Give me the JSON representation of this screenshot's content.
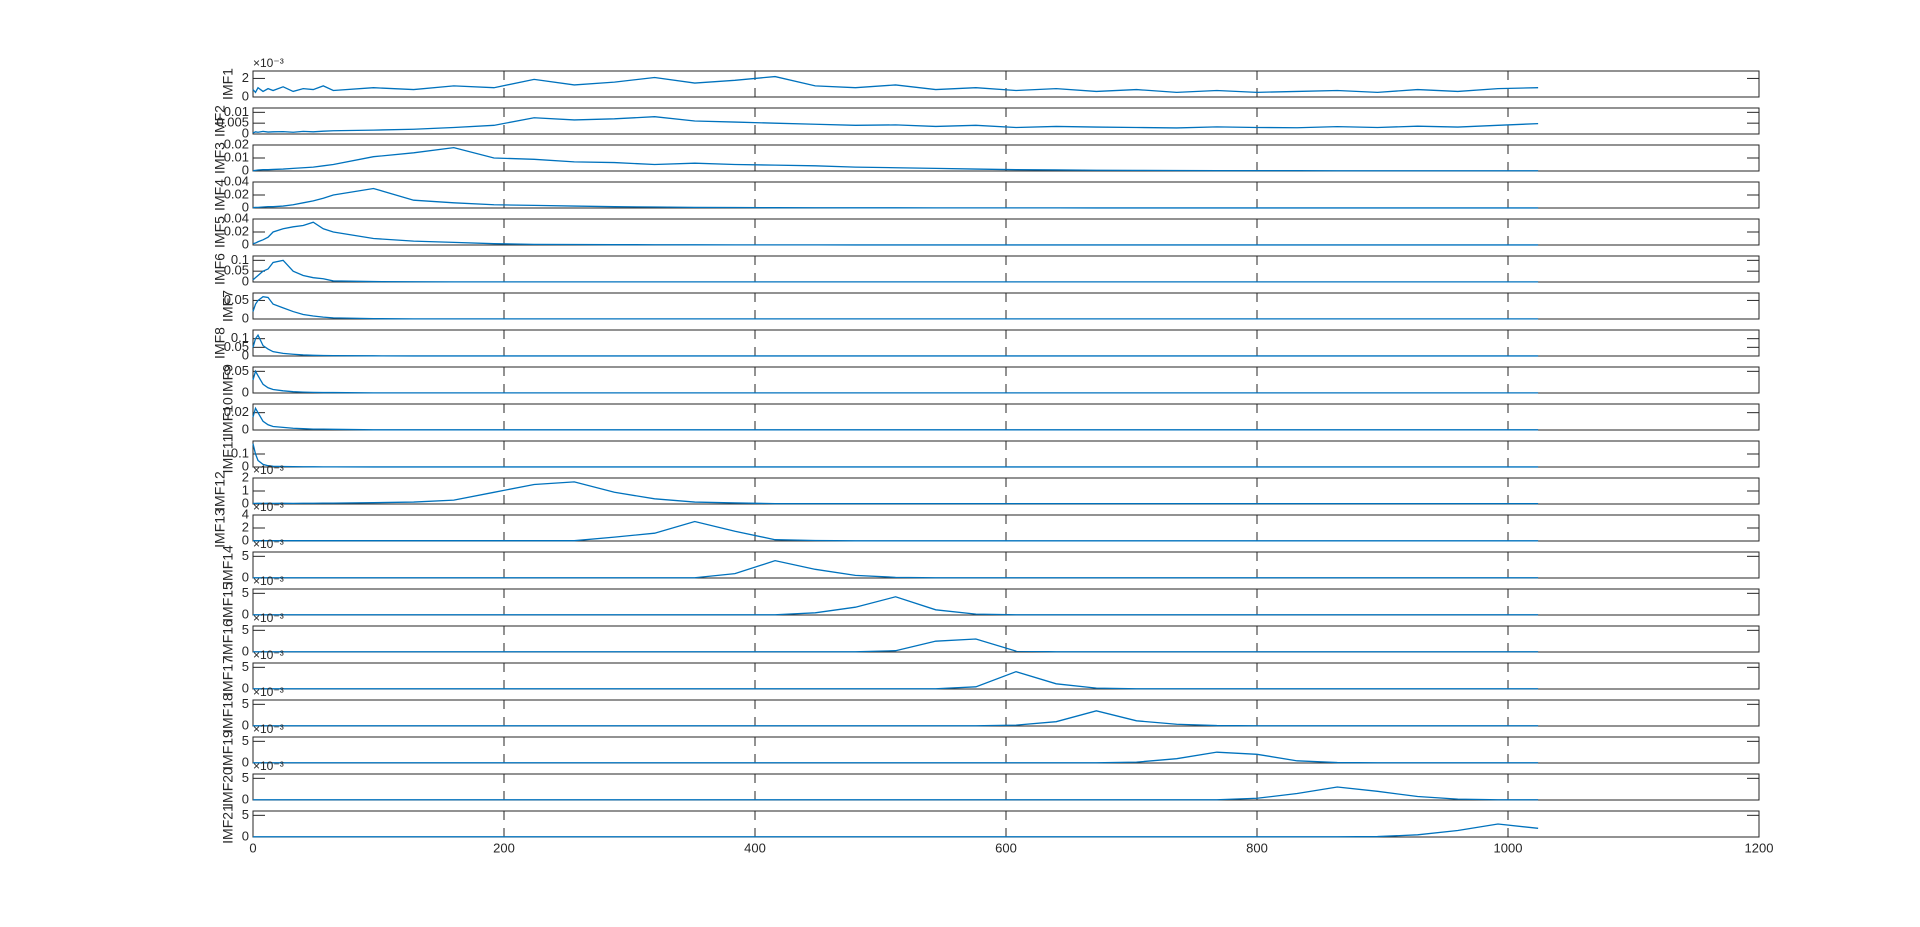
{
  "chart_data": {
    "type": "line",
    "color": "#0072bd",
    "x": [
      0,
      2,
      4,
      8,
      12,
      16,
      24,
      32,
      40,
      48,
      56,
      64,
      96,
      128,
      160,
      192,
      224,
      256,
      288,
      320,
      352,
      384,
      416,
      448,
      480,
      512,
      544,
      576,
      608,
      640,
      672,
      704,
      736,
      768,
      800,
      832,
      864,
      896,
      928,
      960,
      992,
      1024
    ],
    "xlim": [
      0,
      1200
    ],
    "xticks": [
      0,
      200,
      400,
      600,
      800,
      1000,
      1200
    ],
    "panels": [
      {
        "ylabel": "IMF1",
        "exponent_label": "×10⁻³",
        "ylim": [
          0,
          2.8
        ],
        "yticks": [
          0,
          2
        ],
        "values": [
          0.8,
          0.5,
          1.0,
          0.6,
          0.9,
          0.7,
          1.1,
          0.6,
          0.9,
          0.8,
          1.2,
          0.7,
          1.0,
          0.8,
          1.2,
          1.0,
          1.9,
          1.3,
          1.6,
          2.1,
          1.5,
          1.8,
          2.2,
          1.2,
          1.0,
          1.3,
          0.8,
          1.0,
          0.7,
          0.9,
          0.6,
          0.8,
          0.5,
          0.7,
          0.5,
          0.6,
          0.7,
          0.5,
          0.8,
          0.6,
          0.9,
          1.0
        ]
      },
      {
        "ylabel": "IMF2",
        "ylim": [
          0,
          0.012
        ],
        "yticks": [
          0,
          0.005,
          0.01
        ],
        "values": [
          0.0005,
          0.001,
          0.0008,
          0.0012,
          0.0009,
          0.001,
          0.0011,
          0.0008,
          0.0012,
          0.001,
          0.0013,
          0.0015,
          0.0018,
          0.0022,
          0.003,
          0.004,
          0.0075,
          0.0065,
          0.007,
          0.008,
          0.006,
          0.0055,
          0.005,
          0.0045,
          0.004,
          0.0042,
          0.0035,
          0.004,
          0.003,
          0.0035,
          0.0032,
          0.003,
          0.0028,
          0.0033,
          0.003,
          0.0029,
          0.0034,
          0.003,
          0.0036,
          0.0032,
          0.004,
          0.0048
        ]
      },
      {
        "ylabel": "IMF3",
        "ylim": [
          0,
          0.02
        ],
        "yticks": [
          0,
          0.01,
          0.02
        ],
        "values": [
          0.0002,
          0.0005,
          0.0008,
          0.001,
          0.001,
          0.0012,
          0.0015,
          0.002,
          0.0025,
          0.003,
          0.004,
          0.005,
          0.011,
          0.014,
          0.018,
          0.01,
          0.009,
          0.007,
          0.0065,
          0.005,
          0.006,
          0.005,
          0.0045,
          0.004,
          0.003,
          0.0025,
          0.002,
          0.0015,
          0.001,
          0.0008,
          0.0006,
          0.0005,
          0.0004,
          0.0003,
          0.0003,
          0.0003,
          0.0002,
          0.0002,
          0.0002,
          0.0002,
          0.0002,
          0.0002
        ]
      },
      {
        "ylabel": "IMF4",
        "ylim": [
          0,
          0.04
        ],
        "yticks": [
          0,
          0.02,
          0.04
        ],
        "values": [
          0.0005,
          0.001,
          0.001,
          0.0015,
          0.002,
          0.002,
          0.003,
          0.005,
          0.008,
          0.011,
          0.015,
          0.02,
          0.03,
          0.012,
          0.008,
          0.005,
          0.004,
          0.003,
          0.002,
          0.0015,
          0.001,
          0.0008,
          0.0005,
          0.0004,
          0.0003,
          0.0003,
          0.0002,
          0.0002,
          0.0002,
          0.0002,
          0.0001,
          0.0001,
          0.0001,
          0.0001,
          0.0001,
          0.0001,
          0.0001,
          0.0001,
          0.0001,
          0.0001,
          0.0001,
          0.0001
        ]
      },
      {
        "ylabel": "IMF5",
        "ylim": [
          0,
          0.04
        ],
        "yticks": [
          0,
          0.02,
          0.04
        ],
        "values": [
          0.002,
          0.003,
          0.005,
          0.008,
          0.012,
          0.02,
          0.025,
          0.028,
          0.03,
          0.035,
          0.025,
          0.02,
          0.01,
          0.006,
          0.004,
          0.002,
          0.001,
          0.0008,
          0.0005,
          0.0004,
          0.0003,
          0.0002,
          0.0002,
          0.0002,
          0.0001,
          0.0001,
          0.0001,
          0.0001,
          0.0001,
          0.0001,
          0.0001,
          0.0001,
          0.0001,
          0.0001,
          0.0001,
          0.0001,
          0.0001,
          0.0001,
          0.0001,
          0.0001,
          0.0001,
          0.0001
        ]
      },
      {
        "ylabel": "IMF6",
        "ylim": [
          0,
          0.12
        ],
        "yticks": [
          0,
          0.05,
          0.1
        ],
        "values": [
          0.01,
          0.02,
          0.03,
          0.05,
          0.06,
          0.09,
          0.1,
          0.05,
          0.03,
          0.02,
          0.015,
          0.005,
          0.002,
          0.001,
          0.0005,
          0.0005,
          0.0005,
          0.0005,
          0.0005,
          0.0005,
          0.0005,
          0.0005,
          0.0005,
          0.0005,
          0.0005,
          0.0005,
          0.0005,
          0.0005,
          0.0005,
          0.0005,
          0.0005,
          0.0005,
          0.0005,
          0.0005,
          0.0005,
          0.0005,
          0.0005,
          0.0005,
          0.0005,
          0.0005,
          0.0005,
          0.0005
        ]
      },
      {
        "ylabel": "IMF7",
        "ylim": [
          0,
          0.07
        ],
        "yticks": [
          0,
          0.05
        ],
        "values": [
          0.02,
          0.04,
          0.05,
          0.06,
          0.058,
          0.04,
          0.03,
          0.02,
          0.012,
          0.008,
          0.005,
          0.003,
          0.001,
          0.0003,
          0.0003,
          0.0003,
          0.0003,
          0.0003,
          0.0003,
          0.0003,
          0.0003,
          0.0003,
          0.0003,
          0.0003,
          0.0003,
          0.0003,
          0.0003,
          0.0003,
          0.0003,
          0.0003,
          0.0003,
          0.0003,
          0.0003,
          0.0003,
          0.0003,
          0.0003,
          0.0003,
          0.0003,
          0.0003,
          0.0003,
          0.0003,
          0.0003
        ]
      },
      {
        "ylabel": "IMF8",
        "ylim": [
          0,
          0.15
        ],
        "yticks": [
          0,
          0.05,
          0.1
        ],
        "values": [
          0.05,
          0.1,
          0.12,
          0.06,
          0.04,
          0.025,
          0.015,
          0.01,
          0.006,
          0.004,
          0.003,
          0.002,
          0.001,
          0.0003,
          0.0003,
          0.0003,
          0.0003,
          0.0003,
          0.0003,
          0.0003,
          0.0003,
          0.0003,
          0.0003,
          0.0003,
          0.0003,
          0.0003,
          0.0003,
          0.0003,
          0.0003,
          0.0003,
          0.0003,
          0.0003,
          0.0003,
          0.0003,
          0.0003,
          0.0003,
          0.0003,
          0.0003,
          0.0003,
          0.0003,
          0.0003,
          0.0003
        ]
      },
      {
        "ylabel": "IMF9",
        "ylim": [
          0,
          0.06
        ],
        "yticks": [
          0,
          0.05
        ],
        "values": [
          0.03,
          0.05,
          0.04,
          0.02,
          0.012,
          0.008,
          0.005,
          0.003,
          0.002,
          0.0015,
          0.001,
          0.001,
          0.0002,
          0.0002,
          0.0002,
          0.0002,
          0.0002,
          0.0002,
          0.0002,
          0.0002,
          0.0002,
          0.0002,
          0.0002,
          0.0002,
          0.0002,
          0.0002,
          0.0002,
          0.0002,
          0.0002,
          0.0002,
          0.0002,
          0.0002,
          0.0002,
          0.0002,
          0.0002,
          0.0002,
          0.0002,
          0.0002,
          0.0002,
          0.0002,
          0.0002,
          0.0002
        ]
      },
      {
        "ylabel": "IMF10",
        "ylim": [
          0,
          0.03
        ],
        "yticks": [
          0,
          0.02
        ],
        "values": [
          0.015,
          0.025,
          0.02,
          0.01,
          0.006,
          0.004,
          0.003,
          0.002,
          0.0015,
          0.001,
          0.001,
          0.0008,
          0.0002,
          0.0002,
          0.0002,
          0.0002,
          0.0002,
          0.0002,
          0.0002,
          0.0002,
          0.0002,
          0.0002,
          0.0002,
          0.0002,
          0.0002,
          0.0002,
          0.0002,
          0.0002,
          0.0002,
          0.0002,
          0.0002,
          0.0002,
          0.0002,
          0.0002,
          0.0002,
          0.0002,
          0.0002,
          0.0002,
          0.0002,
          0.0002,
          0.0002,
          0.0002
        ]
      },
      {
        "ylabel": "IMF11",
        "ylim": [
          0,
          0.2
        ],
        "yticks": [
          0,
          0.1
        ],
        "values": [
          0.18,
          0.1,
          0.05,
          0.02,
          0.01,
          0.006,
          0.004,
          0.003,
          0.002,
          0.0015,
          0.001,
          0.001,
          0.0003,
          0.0003,
          0.0003,
          0.0003,
          0.0003,
          0.0003,
          0.0003,
          0.0003,
          0.0003,
          0.0003,
          0.0003,
          0.0003,
          0.0003,
          0.0003,
          0.0003,
          0.0003,
          0.0003,
          0.0003,
          0.0003,
          0.0003,
          0.0003,
          0.0003,
          0.0003,
          0.0003,
          0.0003,
          0.0003,
          0.0003,
          0.0003,
          0.0003,
          0.0003
        ]
      },
      {
        "ylabel": "IMF12",
        "exponent_label": "×10⁻³",
        "ylim": [
          0,
          2
        ],
        "yticks": [
          0,
          1,
          2
        ],
        "values": [
          0.05,
          0.05,
          0.06,
          0.05,
          0.06,
          0.05,
          0.06,
          0.05,
          0.06,
          0.06,
          0.07,
          0.07,
          0.1,
          0.15,
          0.3,
          0.9,
          1.5,
          1.7,
          0.9,
          0.4,
          0.15,
          0.08,
          0.03,
          0.03,
          0.03,
          0.03,
          0.03,
          0.03,
          0.03,
          0.03,
          0.03,
          0.03,
          0.03,
          0.03,
          0.03,
          0.03,
          0.03,
          0.03,
          0.03,
          0.03,
          0.03,
          0.03
        ]
      },
      {
        "ylabel": "IMF13",
        "exponent_label": "×10⁻³",
        "ylim": [
          0,
          4
        ],
        "yticks": [
          0,
          2,
          4
        ],
        "values": [
          0.05,
          0.05,
          0.05,
          0.05,
          0.05,
          0.05,
          0.05,
          0.05,
          0.05,
          0.05,
          0.05,
          0.05,
          0.05,
          0.05,
          0.05,
          0.05,
          0.05,
          0.05,
          0.6,
          1.2,
          3.0,
          1.5,
          0.2,
          0.08,
          0.03,
          0.03,
          0.03,
          0.03,
          0.03,
          0.03,
          0.03,
          0.03,
          0.03,
          0.03,
          0.03,
          0.03,
          0.03,
          0.03,
          0.03,
          0.03,
          0.03,
          0.03
        ]
      },
      {
        "ylabel": "IMF14",
        "exponent_label": "×10⁻³",
        "ylim": [
          0,
          6
        ],
        "yticks": [
          0,
          5
        ],
        "values": [
          0.05,
          0.05,
          0.05,
          0.05,
          0.05,
          0.05,
          0.05,
          0.05,
          0.05,
          0.05,
          0.05,
          0.05,
          0.05,
          0.05,
          0.05,
          0.05,
          0.05,
          0.05,
          0.05,
          0.05,
          0.05,
          1.0,
          4.0,
          2.0,
          0.6,
          0.15,
          0.05,
          0.05,
          0.05,
          0.05,
          0.05,
          0.05,
          0.05,
          0.05,
          0.05,
          0.05,
          0.05,
          0.05,
          0.05,
          0.05,
          0.05,
          0.05
        ]
      },
      {
        "ylabel": "IMF15",
        "exponent_label": "×10⁻³",
        "ylim": [
          0,
          6
        ],
        "yticks": [
          0,
          5
        ],
        "values": [
          0.05,
          0.05,
          0.05,
          0.05,
          0.05,
          0.05,
          0.05,
          0.05,
          0.05,
          0.05,
          0.05,
          0.05,
          0.05,
          0.05,
          0.05,
          0.05,
          0.05,
          0.05,
          0.05,
          0.05,
          0.05,
          0.05,
          0.05,
          0.5,
          1.8,
          4.2,
          1.2,
          0.2,
          0.05,
          0.05,
          0.05,
          0.05,
          0.05,
          0.05,
          0.05,
          0.05,
          0.05,
          0.05,
          0.05,
          0.05,
          0.05,
          0.05
        ]
      },
      {
        "ylabel": "IMF16",
        "exponent_label": "×10⁻³",
        "ylim": [
          0,
          6
        ],
        "yticks": [
          0,
          5
        ],
        "values": [
          0.05,
          0.05,
          0.05,
          0.05,
          0.05,
          0.05,
          0.05,
          0.05,
          0.05,
          0.05,
          0.05,
          0.05,
          0.05,
          0.05,
          0.05,
          0.05,
          0.05,
          0.05,
          0.05,
          0.05,
          0.05,
          0.05,
          0.05,
          0.05,
          0.05,
          0.3,
          2.5,
          3.0,
          0.2,
          0.05,
          0.05,
          0.05,
          0.05,
          0.05,
          0.05,
          0.05,
          0.05,
          0.05,
          0.05,
          0.05,
          0.05,
          0.05
        ]
      },
      {
        "ylabel": "IMF17",
        "exponent_label": "×10⁻³",
        "ylim": [
          0,
          6
        ],
        "yticks": [
          0,
          5
        ],
        "values": [
          0.05,
          0.05,
          0.05,
          0.05,
          0.05,
          0.05,
          0.05,
          0.05,
          0.05,
          0.05,
          0.05,
          0.05,
          0.05,
          0.05,
          0.05,
          0.05,
          0.05,
          0.05,
          0.05,
          0.05,
          0.05,
          0.05,
          0.05,
          0.05,
          0.05,
          0.05,
          0.05,
          0.5,
          4.0,
          1.2,
          0.2,
          0.05,
          0.05,
          0.05,
          0.05,
          0.05,
          0.05,
          0.05,
          0.05,
          0.05,
          0.05,
          0.05
        ]
      },
      {
        "ylabel": "IMF18",
        "exponent_label": "×10⁻³",
        "ylim": [
          0,
          6
        ],
        "yticks": [
          0,
          5
        ],
        "values": [
          0.05,
          0.05,
          0.05,
          0.05,
          0.05,
          0.05,
          0.05,
          0.05,
          0.05,
          0.05,
          0.05,
          0.05,
          0.05,
          0.05,
          0.05,
          0.05,
          0.05,
          0.05,
          0.05,
          0.05,
          0.05,
          0.05,
          0.05,
          0.05,
          0.05,
          0.05,
          0.05,
          0.05,
          0.2,
          1.0,
          3.5,
          1.2,
          0.4,
          0.1,
          0.05,
          0.05,
          0.05,
          0.05,
          0.05,
          0.05,
          0.05,
          0.05
        ]
      },
      {
        "ylabel": "IMF19",
        "exponent_label": "×10⁻³",
        "ylim": [
          0,
          6
        ],
        "yticks": [
          0,
          5
        ],
        "values": [
          0.05,
          0.05,
          0.05,
          0.05,
          0.05,
          0.05,
          0.05,
          0.05,
          0.05,
          0.05,
          0.05,
          0.05,
          0.05,
          0.05,
          0.05,
          0.05,
          0.05,
          0.05,
          0.05,
          0.05,
          0.05,
          0.05,
          0.05,
          0.05,
          0.05,
          0.05,
          0.05,
          0.05,
          0.05,
          0.05,
          0.05,
          0.2,
          1.0,
          2.5,
          2.0,
          0.5,
          0.1,
          0.05,
          0.05,
          0.05,
          0.05,
          0.05
        ]
      },
      {
        "ylabel": "IMF20",
        "exponent_label": "×10⁻³",
        "ylim": [
          0,
          6
        ],
        "yticks": [
          0,
          5
        ],
        "values": [
          0.05,
          0.05,
          0.05,
          0.05,
          0.05,
          0.05,
          0.05,
          0.05,
          0.05,
          0.05,
          0.05,
          0.05,
          0.05,
          0.05,
          0.05,
          0.05,
          0.05,
          0.05,
          0.05,
          0.05,
          0.05,
          0.05,
          0.05,
          0.05,
          0.05,
          0.05,
          0.05,
          0.05,
          0.05,
          0.05,
          0.05,
          0.05,
          0.05,
          0.05,
          0.4,
          1.5,
          3.0,
          2.0,
          0.8,
          0.2,
          0.05,
          0.05
        ]
      },
      {
        "ylabel": "IMF21",
        "ylim": [
          0,
          6
        ],
        "yticks": [
          0,
          5
        ],
        "values": [
          0.05,
          0.05,
          0.05,
          0.05,
          0.05,
          0.05,
          0.05,
          0.05,
          0.05,
          0.05,
          0.05,
          0.05,
          0.05,
          0.05,
          0.05,
          0.05,
          0.05,
          0.05,
          0.05,
          0.05,
          0.05,
          0.05,
          0.05,
          0.05,
          0.05,
          0.05,
          0.05,
          0.05,
          0.05,
          0.05,
          0.05,
          0.05,
          0.05,
          0.05,
          0.05,
          0.05,
          0.05,
          0.1,
          0.5,
          1.5,
          3.0,
          2.0
        ]
      }
    ]
  }
}
